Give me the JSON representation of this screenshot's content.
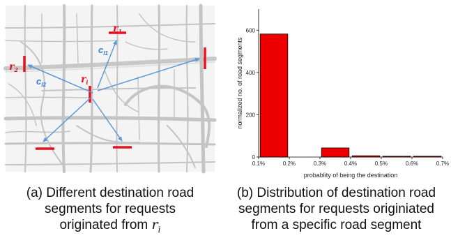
{
  "panel_a": {
    "labels": [
      {
        "key": "r1_top",
        "main": "r",
        "sub": "1"
      },
      {
        "key": "ri",
        "main": "r",
        "sub": "i"
      },
      {
        "key": "r2",
        "main": "r",
        "sub": "2"
      },
      {
        "key": "cl1",
        "main": "c",
        "sub": "l1"
      },
      {
        "key": "cl2",
        "main": "c",
        "sub": "l2"
      }
    ],
    "colors": {
      "segment": "#e8111d",
      "arrow": "#5b97d6",
      "road": "#c9c9c9"
    }
  },
  "captions": {
    "a": [
      "(a) Different destination road",
      "segments for requests",
      "originated from "
    ],
    "a_math": "r",
    "a_math_sub": "i",
    "b": [
      "(b) Distribution of destination road",
      "segments for requests originiated",
      "from a specific road segment"
    ]
  },
  "chart_data": {
    "type": "bar",
    "categories": [
      "0.1%",
      "0.2%",
      "0.3%",
      "0.4%",
      "0.5%",
      "0.6%",
      "0.7%"
    ],
    "x_ticks": [
      "0.1%",
      "0.2%",
      "0.3%",
      "0.4%",
      "0.5%",
      "0.6%",
      "0.7%"
    ],
    "bars": [
      {
        "x": 0.15,
        "value": 582
      },
      {
        "x": 0.25,
        "value": 0
      },
      {
        "x": 0.35,
        "value": 43
      },
      {
        "x": 0.45,
        "value": 6
      },
      {
        "x": 0.55,
        "value": 3
      },
      {
        "x": 0.65,
        "value": 1
      }
    ],
    "xlim": [
      0.1,
      0.7
    ],
    "ylim": [
      0,
      700
    ],
    "y_ticks": [
      0,
      200,
      400,
      600
    ],
    "xlabel": "probablity of being the destination",
    "ylabel": "normalized no. of road segments",
    "bar_color": "#ee0000",
    "grid": false
  }
}
